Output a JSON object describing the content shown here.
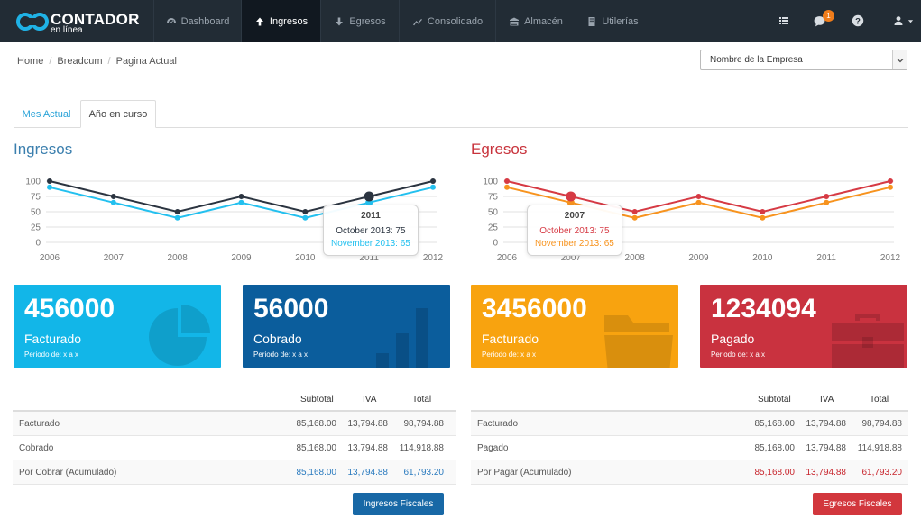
{
  "brand": {
    "title": "CONTADOR",
    "subtitle": "en línea"
  },
  "nav": {
    "items": [
      {
        "label": "Dashboard",
        "icon": "gauge-icon"
      },
      {
        "label": "Ingresos",
        "icon": "arrow-up-icon",
        "active": true
      },
      {
        "label": "Egresos",
        "icon": "arrow-down-icon"
      },
      {
        "label": "Consolidado",
        "icon": "trend-icon"
      },
      {
        "label": "Almacén",
        "icon": "warehouse-icon"
      },
      {
        "label": "Utilerías",
        "icon": "tools-icon"
      }
    ],
    "right_icons": [
      "list-icon",
      "chat-icon",
      "help-icon",
      "user-icon"
    ],
    "notification_count": "1"
  },
  "breadcrumb": {
    "items": [
      "Home",
      "Breadcum",
      "Pagina Actual"
    ],
    "separator": "/"
  },
  "company_select": {
    "value": "Nombre de la Empresa"
  },
  "tabs": [
    {
      "label": "Mes Actual"
    },
    {
      "label": "Año en curso",
      "active": true
    }
  ],
  "ingresos": {
    "title": "Ingresos",
    "tooltip": {
      "title": "2011",
      "line1": "October 2013: 75",
      "line2": "November 2013: 65"
    },
    "tiles": [
      {
        "value": "456000",
        "label": "Facturado",
        "period": "Periodo de: x a x",
        "color": "#12b6e8",
        "icon": "pie-chart-icon"
      },
      {
        "value": "56000",
        "label": "Cobrado",
        "period": "Periodo de: x a x",
        "color": "#0b5d9c",
        "icon": "bar-chart-icon"
      }
    ],
    "table": {
      "headers": [
        "Subtotal",
        "IVA",
        "Total"
      ],
      "rows": [
        {
          "label": "Facturado",
          "subtotal": "85,168.00",
          "iva": "13,794.88",
          "total": "98,794.88"
        },
        {
          "label": "Cobrado",
          "subtotal": "85,168.00",
          "iva": "13,794.88",
          "total": "114,918.88"
        },
        {
          "label": "Por Cobrar (Acumulado)",
          "subtotal": "85,168.00",
          "iva": "13,794.88",
          "total": "61,793.20",
          "highlight_color": "#2b7bbf"
        }
      ]
    },
    "button": "Ingresos Fiscales"
  },
  "egresos": {
    "title": "Egresos",
    "tooltip": {
      "title": "2007",
      "line1": "October 2013: 75",
      "line2": "November 2013: 65"
    },
    "tiles": [
      {
        "value": "3456000",
        "label": "Facturado",
        "period": "Periodo de: x a x",
        "color": "#f8a30f",
        "icon": "folder-icon"
      },
      {
        "value": "1234094",
        "label": "Pagado",
        "period": "Periodo de: x a x",
        "color": "#c9323f",
        "icon": "briefcase-icon"
      }
    ],
    "table": {
      "headers": [
        "Subtotal",
        "IVA",
        "Total"
      ],
      "rows": [
        {
          "label": "Facturado",
          "subtotal": "85,168.00",
          "iva": "13,794.88",
          "total": "98,794.88"
        },
        {
          "label": "Pagado",
          "subtotal": "85,168.00",
          "iva": "13,794.88",
          "total": "114,918.88"
        },
        {
          "label": "Por Pagar (Acumulado)",
          "subtotal": "85,168.00",
          "iva": "13,794.88",
          "total": "61,793.20",
          "highlight_color": "#c8262e"
        }
      ]
    },
    "button": "Egresos Fiscales"
  },
  "chart_data": [
    {
      "type": "line",
      "x": [
        "2006",
        "2007",
        "2008",
        "2009",
        "2010",
        "2011",
        "2012"
      ],
      "ylim": [
        0,
        100
      ],
      "yticks": [
        0,
        25,
        50,
        75,
        100
      ],
      "series": [
        {
          "values": [
            100,
            75,
            50,
            75,
            50,
            75,
            100
          ],
          "color": "#2b3440"
        },
        {
          "values": [
            90,
            65,
            40,
            65,
            40,
            65,
            90
          ],
          "color": "#23c0ef"
        }
      ],
      "highlight_index": 5
    },
    {
      "type": "line",
      "x": [
        "2006",
        "2007",
        "2008",
        "2009",
        "2010",
        "2011",
        "2012"
      ],
      "ylim": [
        0,
        100
      ],
      "yticks": [
        0,
        25,
        50,
        75,
        100
      ],
      "series": [
        {
          "values": [
            100,
            75,
            50,
            75,
            50,
            75,
            100
          ],
          "color": "#d63a44"
        },
        {
          "values": [
            90,
            65,
            40,
            65,
            40,
            65,
            90
          ],
          "color": "#f7931e"
        }
      ],
      "highlight_index": 1
    }
  ]
}
